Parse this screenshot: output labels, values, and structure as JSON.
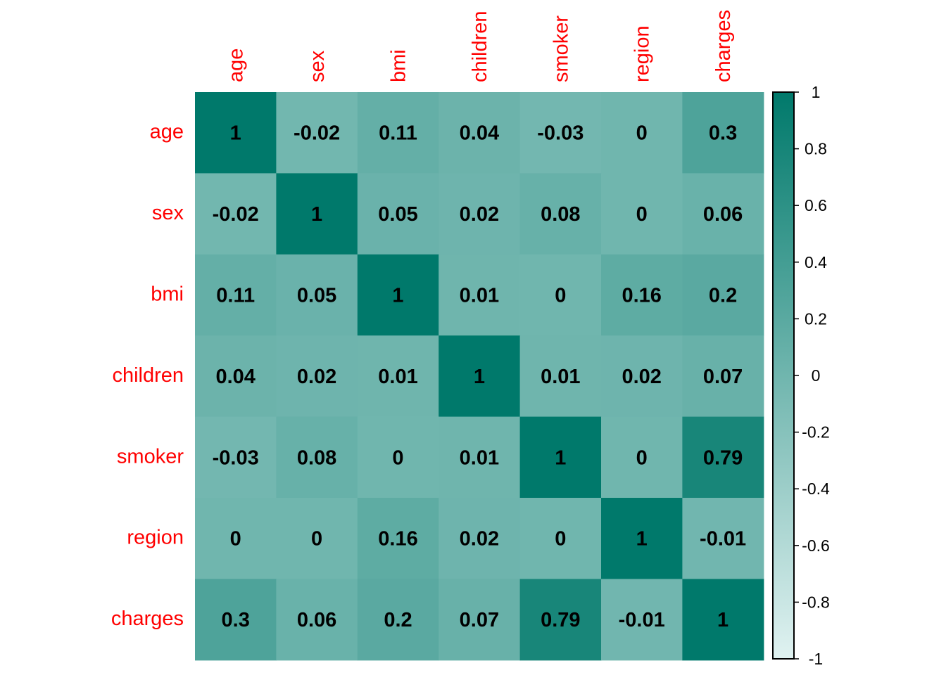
{
  "chart_data": {
    "type": "heatmap",
    "title": "",
    "variables": [
      "age",
      "sex",
      "bmi",
      "children",
      "smoker",
      "region",
      "charges"
    ],
    "matrix": [
      [
        1,
        -0.02,
        0.11,
        0.04,
        -0.03,
        0,
        0.3
      ],
      [
        -0.02,
        1,
        0.05,
        0.02,
        0.08,
        0,
        0.06
      ],
      [
        0.11,
        0.05,
        1,
        0.01,
        0,
        0.16,
        0.2
      ],
      [
        0.04,
        0.02,
        0.01,
        1,
        0.01,
        0.02,
        0.07
      ],
      [
        -0.03,
        0.08,
        0,
        0.01,
        1,
        0,
        0.79
      ],
      [
        0,
        0,
        0.16,
        0.02,
        0,
        1,
        -0.01
      ],
      [
        0.3,
        0.06,
        0.2,
        0.07,
        0.79,
        -0.01,
        1
      ]
    ],
    "colorbar": {
      "range": [
        -1,
        1
      ],
      "ticks": [
        "1",
        "0.8",
        "0.6",
        "0.4",
        "0.2",
        "0",
        "-0.2",
        "-0.4",
        "-0.6",
        "-0.8",
        "-1"
      ],
      "tick_values": [
        1,
        0.8,
        0.6,
        0.4,
        0.2,
        0,
        -0.2,
        -0.4,
        -0.6,
        -0.8,
        -1
      ],
      "low_color": "#e0f2f1",
      "high_color": "#00796b"
    },
    "label_color": "#ff0000",
    "value_label_color": "#000000",
    "grid": false,
    "legend_position": "right"
  }
}
